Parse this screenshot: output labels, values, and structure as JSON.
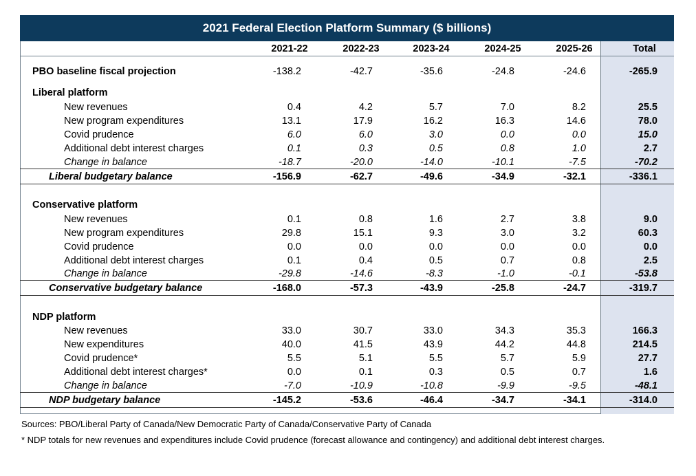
{
  "title": "2021 Federal Election Platform Summary  ($ billions)",
  "columns": [
    "2021-22",
    "2022-23",
    "2023-24",
    "2024-25",
    "2025-26",
    "Total"
  ],
  "baseline": {
    "label": "PBO baseline fiscal projection",
    "values": [
      "-138.2",
      "-42.7",
      "-35.6",
      "-24.8",
      "-24.6",
      "-265.9"
    ]
  },
  "liberal": {
    "heading": "Liberal platform",
    "rows": [
      {
        "label": "New revenues",
        "values": [
          "0.4",
          "4.2",
          "5.7",
          "7.0",
          "8.2",
          "25.5"
        ]
      },
      {
        "label": "New program expenditures",
        "values": [
          "13.1",
          "17.9",
          "16.2",
          "16.3",
          "14.6",
          "78.0"
        ]
      },
      {
        "label": "Covid prudence",
        "values": [
          "6.0",
          "6.0",
          "3.0",
          "0.0",
          "0.0",
          "15.0"
        ]
      },
      {
        "label": "Additional debt interest charges",
        "values": [
          "0.1",
          "0.3",
          "0.5",
          "0.8",
          "1.0",
          "2.7"
        ]
      },
      {
        "label": "Change in balance",
        "values": [
          "-18.7",
          "-20.0",
          "-14.0",
          "-10.1",
          "-7.5",
          "-70.2"
        ]
      }
    ],
    "balance": {
      "label": "Liberal budgetary balance",
      "values": [
        "-156.9",
        "-62.7",
        "-49.6",
        "-34.9",
        "-32.1",
        "-336.1"
      ]
    }
  },
  "conservative": {
    "heading": "Conservative platform",
    "rows": [
      {
        "label": "New revenues",
        "values": [
          "0.1",
          "0.8",
          "1.6",
          "2.7",
          "3.8",
          "9.0"
        ]
      },
      {
        "label": "New program expenditures",
        "values": [
          "29.8",
          "15.1",
          "9.3",
          "3.0",
          "3.2",
          "60.3"
        ]
      },
      {
        "label": "Covid prudence",
        "values": [
          "0.0",
          "0.0",
          "0.0",
          "0.0",
          "0.0",
          "0.0"
        ]
      },
      {
        "label": "Additional debt interest charges",
        "values": [
          "0.1",
          "0.4",
          "0.5",
          "0.7",
          "0.8",
          "2.5"
        ]
      },
      {
        "label": "Change in balance",
        "values": [
          "-29.8",
          "-14.6",
          "-8.3",
          "-1.0",
          "-0.1",
          "-53.8"
        ]
      }
    ],
    "balance": {
      "label": "Conservative budgetary balance",
      "values": [
        "-168.0",
        "-57.3",
        "-43.9",
        "-25.8",
        "-24.7",
        "-319.7"
      ]
    }
  },
  "ndp": {
    "heading": "NDP platform",
    "rows": [
      {
        "label": "New revenues",
        "values": [
          "33.0",
          "30.7",
          "33.0",
          "34.3",
          "35.3",
          "166.3"
        ]
      },
      {
        "label": "New expenditures",
        "values": [
          "40.0",
          "41.5",
          "43.9",
          "44.2",
          "44.8",
          "214.5"
        ]
      },
      {
        "label": "Covid prudence*",
        "values": [
          "5.5",
          "5.1",
          "5.5",
          "5.7",
          "5.9",
          "27.7"
        ]
      },
      {
        "label": "Additional debt interest charges*",
        "values": [
          "0.0",
          "0.1",
          "0.3",
          "0.5",
          "0.7",
          "1.6"
        ]
      },
      {
        "label": "Change in balance",
        "values": [
          "-7.0",
          "-10.9",
          "-10.8",
          "-9.9",
          "-9.5",
          "-48.1"
        ]
      }
    ],
    "balance": {
      "label": "NDP budgetary balance",
      "values": [
        "-145.2",
        "-53.6",
        "-46.4",
        "-34.7",
        "-34.1",
        "-314.0"
      ]
    }
  },
  "footnotes": {
    "sources": "Sources: PBO/Liberal Party of Canada/New Democratic Party of Canada/Conservative Party of Canada",
    "note": "* NDP totals for new revenues and expenditures include Covid prudence (forecast allowance and contingency) and additional debt interest charges."
  }
}
